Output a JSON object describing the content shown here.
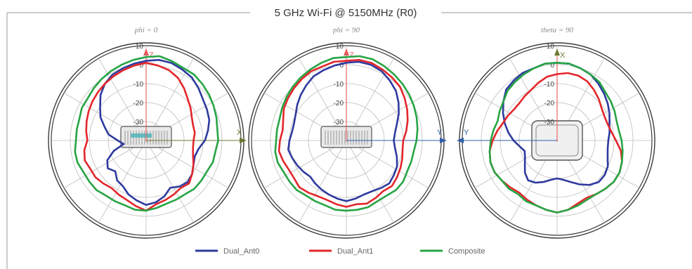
{
  "title": "5 GHz Wi-Fi @ 5150MHz (R0)",
  "colors": {
    "Dual_Ant0": "#2e3a9e",
    "Dual_Ant1": "#e3262b",
    "Composite": "#27a444",
    "axis_red": "#e65a5a",
    "axis_x": "#6b7a33",
    "axis_y": "#2f5fa8",
    "grid": "#bdbdbd"
  },
  "legend": [
    {
      "name": "Dual_Ant0",
      "color": "#2e3a9e"
    },
    {
      "name": "Dual_Ant1",
      "color": "#e3262b"
    },
    {
      "name": "Composite",
      "color": "#27a444"
    }
  ],
  "chart_data": [
    {
      "type": "polar",
      "title": "phi = 0",
      "r_range": [
        -40,
        10
      ],
      "r_ticks": [
        10,
        0,
        -10,
        -20,
        -30
      ],
      "up_axis": "Z",
      "right_axis": "X",
      "left_axis": "",
      "series": [
        {
          "name": "Dual_Ant0",
          "values": [
            2,
            3,
            3,
            2,
            1,
            -1,
            -3,
            -4,
            -5,
            -7,
            -9,
            -12,
            -13,
            -12,
            -10,
            -9,
            -10,
            -12,
            -9,
            -7,
            -6,
            -8,
            -10,
            -13,
            -14,
            -17,
            -15,
            -17,
            -22,
            -28,
            -25,
            -20,
            -17,
            -13,
            -10,
            -6,
            -3,
            -1,
            0,
            1
          ]
        },
        {
          "name": "Dual_Ant1",
          "values": [
            1,
            0,
            -1,
            -3,
            -6,
            -9,
            -11,
            -13,
            -14,
            -14,
            -15,
            -15,
            -14,
            -12,
            -10,
            -8,
            -9,
            -8,
            -7,
            -6,
            -3,
            -5,
            -7,
            -8,
            -9,
            -8,
            -7,
            -7,
            -6,
            -7,
            -9,
            -8,
            -7,
            -6,
            -5,
            -4,
            -3,
            -2,
            -1,
            0
          ]
        },
        {
          "name": "Composite",
          "values": [
            4,
            5,
            4,
            3,
            3,
            2,
            1,
            0,
            -1,
            -2,
            -2,
            -3,
            -3,
            -4,
            -4,
            -4,
            -5,
            -5,
            -5,
            -4,
            -3,
            -3,
            -4,
            -4,
            -4,
            -3,
            -3,
            -3,
            -2,
            -2,
            -3,
            -3,
            -3,
            -2,
            -2,
            -1,
            0,
            1,
            2,
            3
          ]
        }
      ]
    },
    {
      "type": "polar",
      "title": "phi = 90",
      "r_range": [
        -40,
        10
      ],
      "r_ticks": [
        10,
        0,
        -10,
        -20,
        -30
      ],
      "up_axis": "Z",
      "right_axis": "Y",
      "left_axis": "",
      "series": [
        {
          "name": "Dual_Ant0",
          "values": [
            1,
            2,
            2,
            1,
            -1,
            -3,
            -6,
            -9,
            -12,
            -14,
            -15,
            -14,
            -12,
            -10,
            -9,
            -8,
            -9,
            -10,
            -10,
            -9,
            -8,
            -9,
            -10,
            -11,
            -12,
            -13,
            -12,
            -11,
            -10,
            -9,
            -10,
            -11,
            -11,
            -10,
            -8,
            -6,
            -4,
            -2,
            -1,
            0
          ]
        },
        {
          "name": "Dual_Ant1",
          "values": [
            2,
            3,
            3,
            2,
            1,
            0,
            -2,
            -4,
            -6,
            -8,
            -10,
            -10,
            -9,
            -8,
            -7,
            -6,
            -7,
            -6,
            -5,
            -6,
            -5,
            -6,
            -7,
            -7,
            -6,
            -5,
            -6,
            -6,
            -5,
            -4,
            -5,
            -6,
            -5,
            -3,
            -2,
            -1,
            0,
            1,
            1,
            2
          ]
        },
        {
          "name": "Composite",
          "values": [
            4,
            5,
            5,
            4,
            3,
            2,
            1,
            0,
            -1,
            -2,
            -3,
            -4,
            -4,
            -4,
            -3,
            -3,
            -4,
            -4,
            -3,
            -3,
            -3,
            -3,
            -4,
            -4,
            -4,
            -3,
            -3,
            -3,
            -2,
            -2,
            -3,
            -3,
            -3,
            -2,
            -1,
            0,
            1,
            2,
            3,
            4
          ]
        }
      ]
    },
    {
      "type": "polar",
      "title": "theta = 90",
      "r_range": [
        -40,
        10
      ],
      "r_ticks": [
        10,
        0,
        -10,
        -20,
        -30
      ],
      "up_axis": "X",
      "right_axis": "",
      "left_axis": "Y",
      "series": [
        {
          "name": "Dual_Ant0",
          "values": [
            1,
            1,
            0,
            -1,
            -3,
            -5,
            -7,
            -9,
            -11,
            -12,
            -13,
            -13,
            -12,
            -10,
            -9,
            -9,
            -11,
            -14,
            -17,
            -19,
            -20,
            -19,
            -17,
            -15,
            -14,
            -16,
            -19,
            -21,
            -22,
            -20,
            -17,
            -14,
            -11,
            -8,
            -5,
            -2,
            -1,
            0,
            0,
            1
          ]
        },
        {
          "name": "Dual_Ant1",
          "values": [
            -5,
            -4,
            -4,
            -5,
            -7,
            -9,
            -11,
            -12,
            -12,
            -11,
            -9,
            -6,
            -4,
            -3,
            -3,
            -4,
            -5,
            -6,
            -5,
            -3,
            -2,
            -3,
            -4,
            -5,
            -6,
            -5,
            -4,
            -3,
            -3,
            -4,
            -6,
            -8,
            -10,
            -11,
            -12,
            -12,
            -11,
            -10,
            -8,
            -6
          ]
        },
        {
          "name": "Composite",
          "values": [
            1,
            1,
            0,
            -1,
            -2,
            -4,
            -5,
            -6,
            -7,
            -7,
            -6,
            -5,
            -4,
            -3,
            -3,
            -4,
            -5,
            -5,
            -4,
            -3,
            -2,
            -3,
            -4,
            -4,
            -5,
            -4,
            -4,
            -3,
            -3,
            -4,
            -5,
            -6,
            -7,
            -6,
            -5,
            -3,
            -2,
            -1,
            0,
            1
          ]
        }
      ]
    }
  ]
}
